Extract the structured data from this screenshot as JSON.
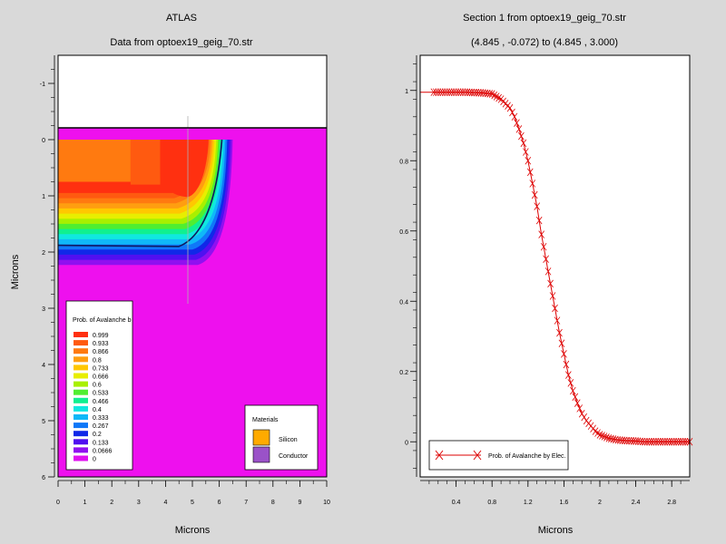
{
  "left_panel": {
    "title": "ATLAS",
    "subtitle": "Data from optoex19_geig_70.str",
    "xlabel": "Microns",
    "ylabel": "Microns",
    "legend": {
      "title": "Prob. of Avalanche b",
      "levels": [
        "0.999",
        "0.933",
        "0.866",
        "0.8",
        "0.733",
        "0.666",
        "0.6",
        "0.533",
        "0.466",
        "0.4",
        "0.333",
        "0.267",
        "0.2",
        "0.133",
        "0.0666",
        "0"
      ],
      "colors": [
        "#ff3010",
        "#ff5a10",
        "#ff7a10",
        "#ff9e10",
        "#ffc800",
        "#e8ee00",
        "#a8f000",
        "#50ee30",
        "#10f090",
        "#10e8e0",
        "#10b8f8",
        "#1078f8",
        "#1028e8",
        "#5010f0",
        "#9010f0",
        "#e010f0"
      ]
    },
    "materials": {
      "title": "Materials",
      "items": [
        {
          "label": "Silicon",
          "color": "#ffaa00"
        },
        {
          "label": "Conductor",
          "color": "#9a52c8"
        }
      ]
    }
  },
  "right_panel": {
    "title": "Section 1 from optoex19_geig_70.str",
    "subtitle": "(4.845 , -0.072) to (4.845 , 3.000)",
    "xlabel": "Microns",
    "legend_label": "Prob. of Avalanche by Elec.",
    "line_color": "#dd0000"
  },
  "chart_data": [
    {
      "type": "heatmap",
      "title": "ATLAS",
      "subtitle": "Data from optoex19_geig_70.str",
      "xlabel": "Microns",
      "ylabel": "Microns",
      "xlim": [
        0,
        10
      ],
      "ylim": [
        6,
        -1.5
      ],
      "x_ticks": [
        0,
        1,
        2,
        3,
        4,
        5,
        6,
        7,
        8,
        9,
        10
      ],
      "y_ticks": [
        -1,
        0,
        1,
        2,
        3,
        4,
        5,
        6
      ],
      "surface_y": 0,
      "grid": false
    },
    {
      "type": "line",
      "title": "Section 1 from optoex19_geig_70.str",
      "subtitle": "(4.845 , -0.072) to (4.845 , 3.000)",
      "xlabel": "Microns",
      "ylabel": "",
      "xlim": [
        0.0,
        3.0
      ],
      "ylim": [
        -0.1,
        1.1
      ],
      "x_ticks": [
        0.4,
        0.8,
        1.2,
        1.6,
        2,
        2.4,
        2.8
      ],
      "y_ticks": [
        0,
        0.2,
        0.4,
        0.6,
        0.8,
        1
      ],
      "grid": false,
      "legend_position": "bottom-left",
      "series": [
        {
          "name": "Prob. of Avalanche by Elec.",
          "x": [
            0.0,
            0.1,
            0.2,
            0.3,
            0.4,
            0.5,
            0.6,
            0.7,
            0.8,
            0.9,
            1.0,
            1.05,
            1.1,
            1.15,
            1.2,
            1.25,
            1.3,
            1.35,
            1.4,
            1.45,
            1.5,
            1.55,
            1.6,
            1.65,
            1.7,
            1.75,
            1.8,
            1.85,
            1.9,
            1.95,
            2.0,
            2.1,
            2.2,
            2.3,
            2.4,
            2.5,
            2.6,
            2.7,
            2.8,
            2.9,
            3.0
          ],
          "y": [
            0.995,
            0.995,
            0.995,
            0.995,
            0.995,
            0.995,
            0.994,
            0.993,
            0.99,
            0.975,
            0.95,
            0.925,
            0.89,
            0.85,
            0.8,
            0.735,
            0.67,
            0.59,
            0.52,
            0.45,
            0.38,
            0.31,
            0.25,
            0.19,
            0.145,
            0.11,
            0.08,
            0.06,
            0.045,
            0.03,
            0.02,
            0.01,
            0.005,
            0.003,
            0.002,
            0.0,
            0.0,
            0.0,
            0.0,
            0.0,
            0.0
          ]
        }
      ]
    }
  ]
}
